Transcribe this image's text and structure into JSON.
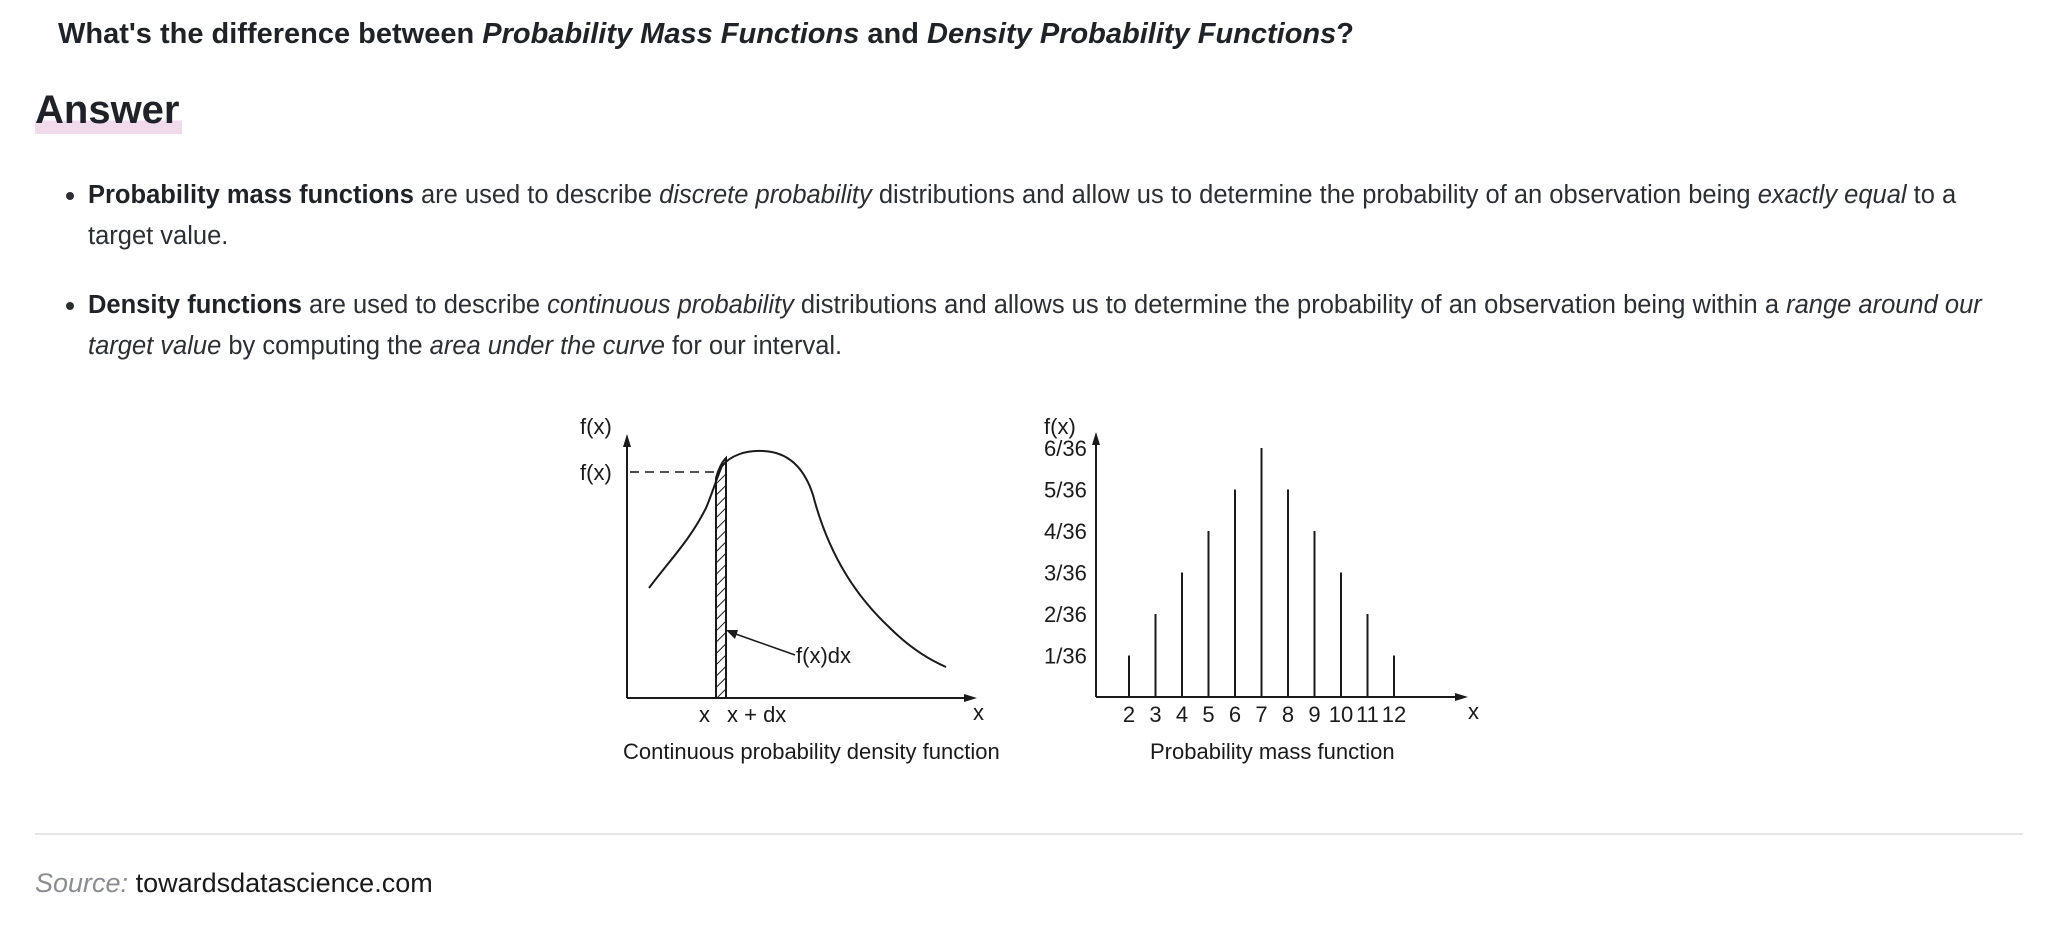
{
  "question": {
    "prefix": "What's the difference between ",
    "term1": "Probability Mass Functions",
    "middle": " and ",
    "term2": "Density Probability Functions",
    "suffix": "?"
  },
  "answer_heading": "Answer",
  "bullets": [
    {
      "bold": "Probability mass functions",
      "t1": " are used to describe ",
      "i1": "discrete probability",
      "t2": " distributions and allow us to determine the probability of an observation being ",
      "i2": "exactly equal",
      "t3": " to a target value."
    },
    {
      "bold": "Density functions",
      "t1": " are used to describe ",
      "i1": "continuous probability",
      "t2": " distributions and allows us to determine the probability of an observation being within a ",
      "i2": "range around our target value",
      "t3": " by computing the ",
      "i3": "area under the curve",
      "t4": " for our interval."
    }
  ],
  "figure": {
    "pdf": {
      "y_axis_label": "f(x)",
      "y_marker_label": "f(x)",
      "x_axis_label": "x",
      "tick_x": "x",
      "tick_xdx": "x + dx",
      "annotation": "f(x)dx",
      "caption": "Continuous probability density function"
    },
    "pmf": {
      "y_axis_label": "f(x)",
      "x_axis_label": "x",
      "y_ticks": [
        "6/36",
        "5/36",
        "4/36",
        "3/36",
        "2/36",
        "1/36"
      ],
      "x_ticks": [
        "2",
        "3",
        "4",
        "5",
        "6",
        "7",
        "8",
        "9",
        "10",
        "11",
        "12"
      ],
      "values": [
        1,
        2,
        3,
        4,
        5,
        6,
        5,
        4,
        3,
        2,
        1
      ],
      "caption": "Probability mass function"
    }
  },
  "source": {
    "label": "Source:",
    "text": " towardsdatascience.com"
  }
}
